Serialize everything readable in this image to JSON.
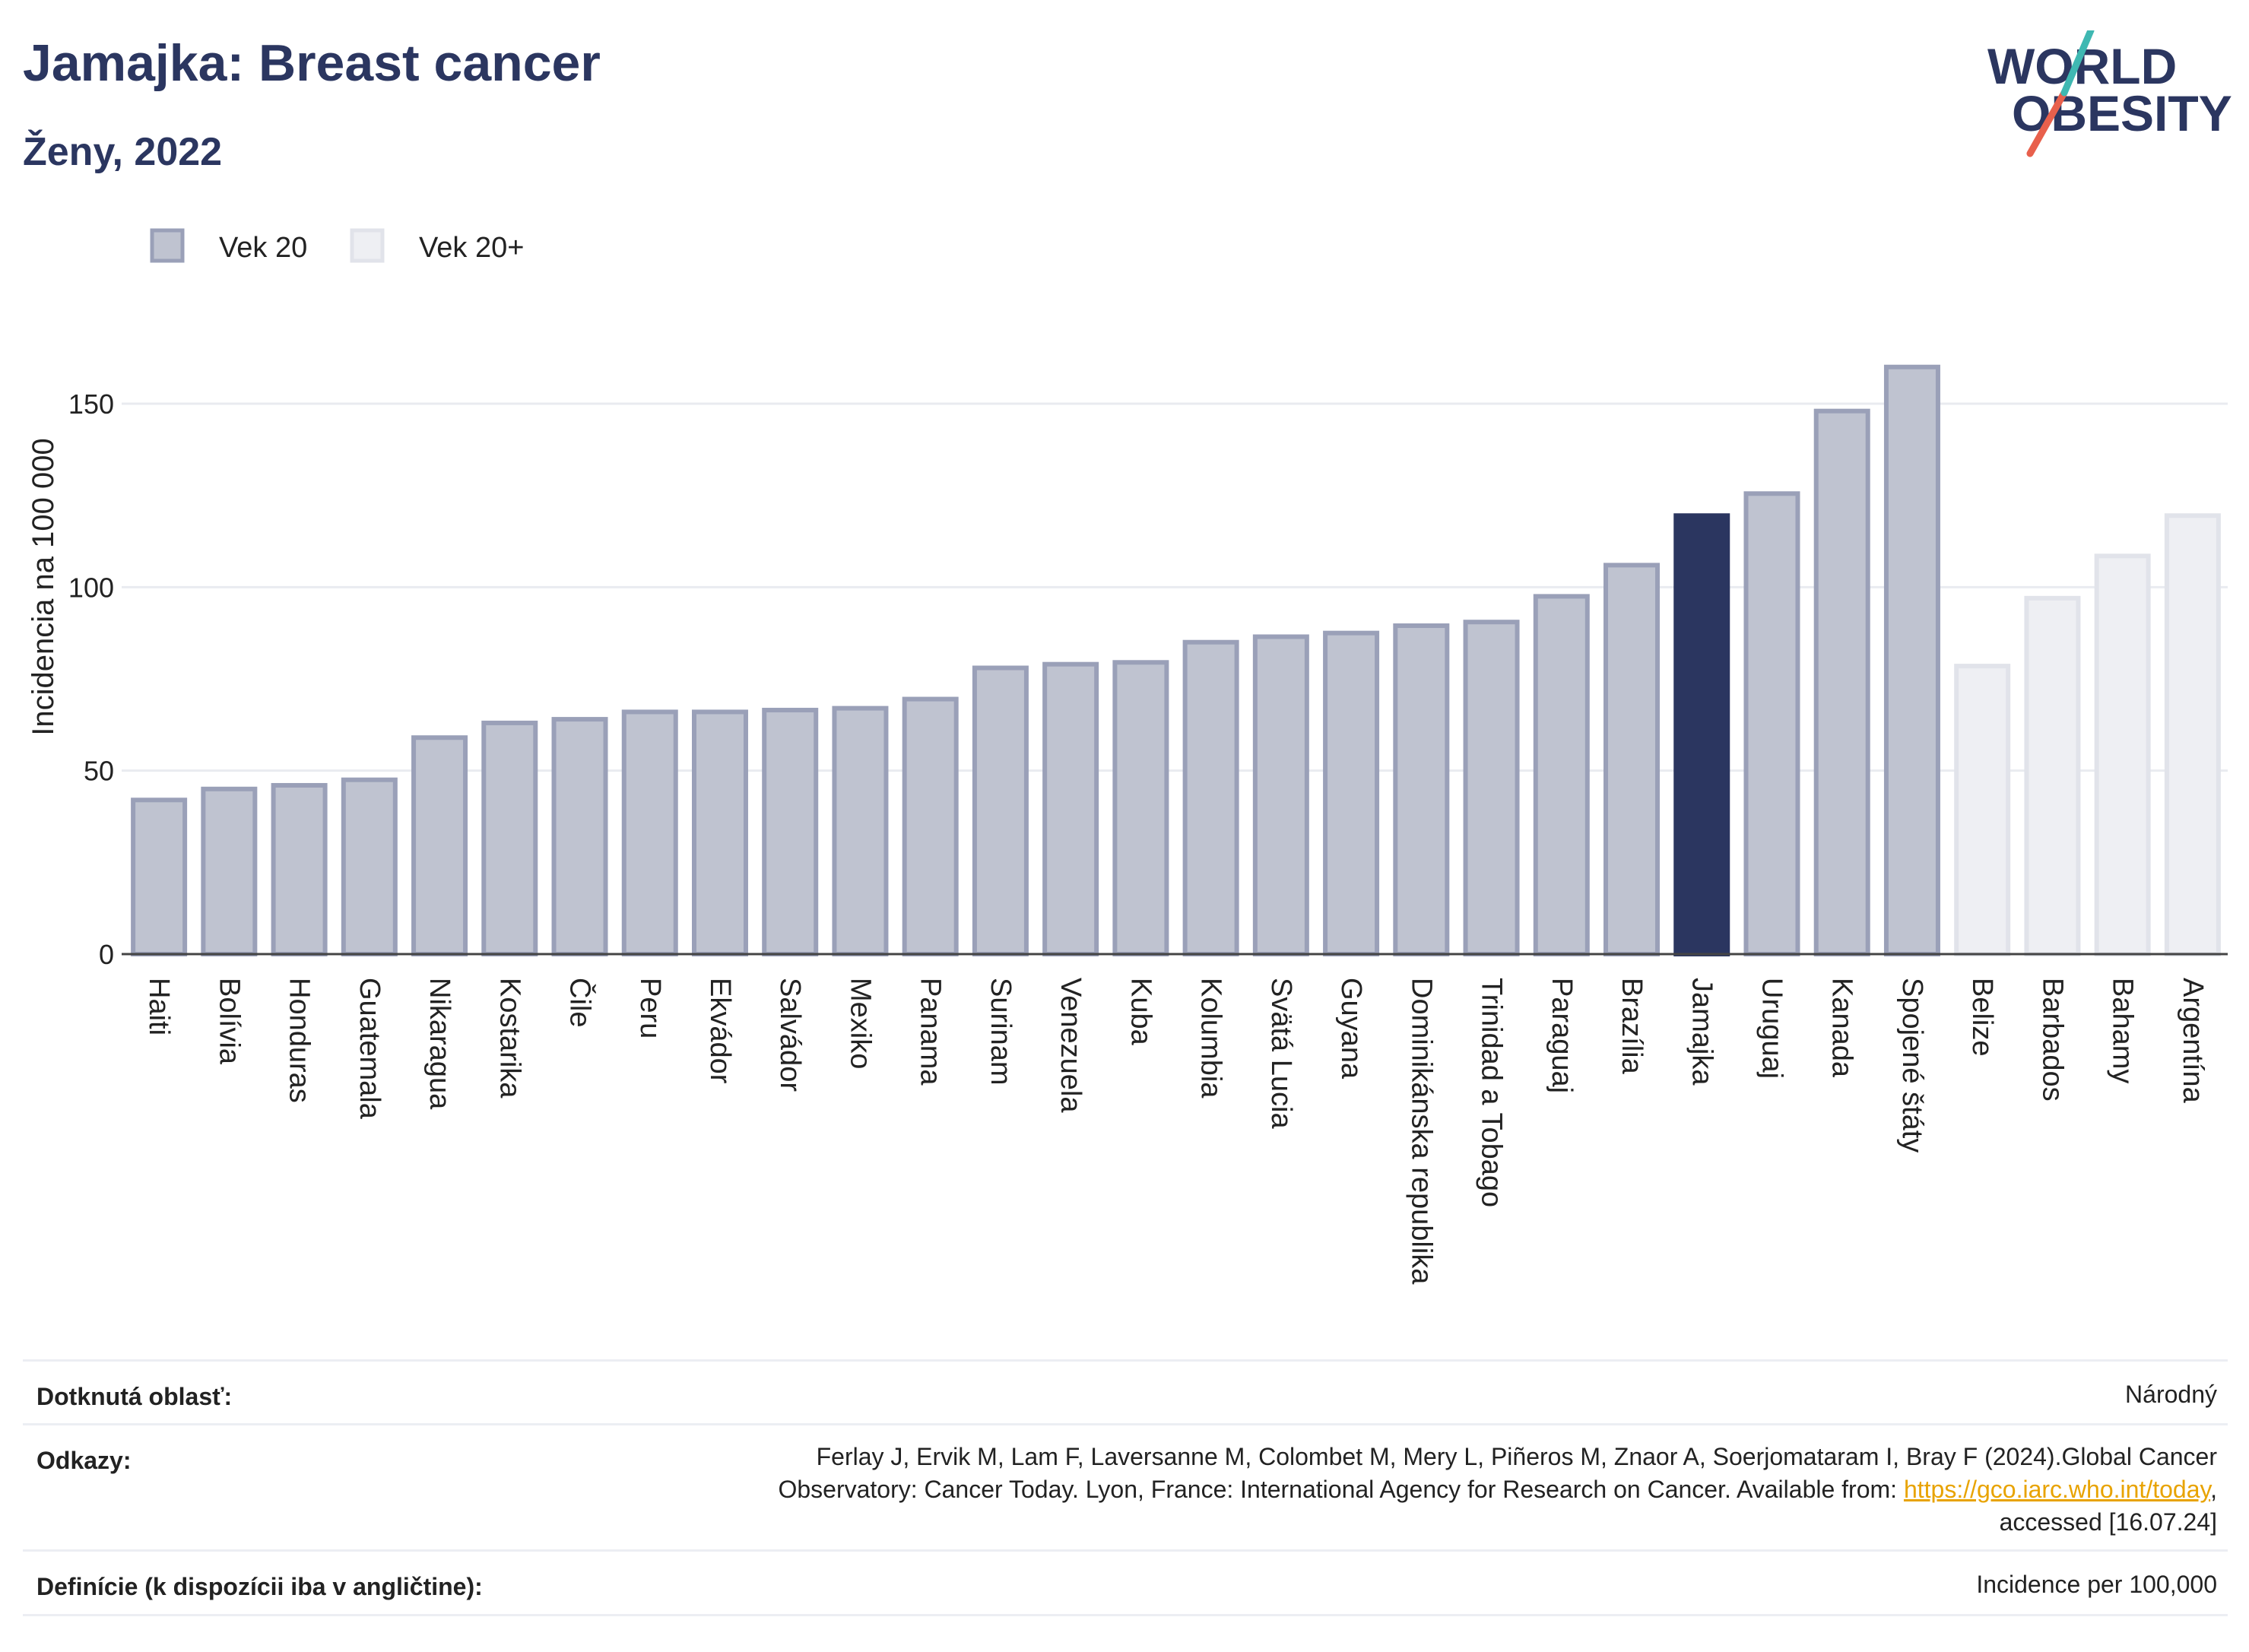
{
  "header": {
    "title": "Jamajka: Breast cancer",
    "subtitle": "Ženy, 2022"
  },
  "logo": {
    "line1": "WORLD",
    "line2": "OBESITY"
  },
  "chart_data": {
    "type": "bar",
    "ylabel": "Incidencia na 100 000",
    "xlabel": "",
    "ylim": [
      0,
      175
    ],
    "yticks": [
      0,
      50,
      100,
      150
    ],
    "grid": true,
    "legend_position": "top-left",
    "legend": [
      {
        "name": "Vek 20",
        "color": "#bfc3d0",
        "border": "#9aa0b8"
      },
      {
        "name": "Vek 20+",
        "color": "#eeeff3",
        "border": "#e1e3ea"
      }
    ],
    "highlight_color": "#2b3660",
    "categories": [
      "Haiti",
      "Bolívia",
      "Honduras",
      "Guatemala",
      "Nikaragua",
      "Kostarika",
      "Čile",
      "Peru",
      "Ekvádor",
      "Salvádor",
      "Mexiko",
      "Panama",
      "Surinam",
      "Venezuela",
      "Kuba",
      "Kolumbia",
      "Svätá Lucia",
      "Guyana",
      "Dominikánska republika",
      "Trinidad a Tobago",
      "Paraguaj",
      "Brazília",
      "Jamajka",
      "Uruguaj",
      "Kanada",
      "Spojené štáty",
      "Belize",
      "Barbados",
      "Bahamy",
      "Argentína"
    ],
    "values": [
      42,
      45,
      46,
      47.5,
      59,
      63,
      64,
      66,
      66,
      66.5,
      67,
      69.5,
      78,
      79,
      79.5,
      85,
      86.5,
      87.5,
      89.5,
      90.5,
      97.5,
      106,
      119.5,
      125.5,
      148,
      160,
      78.5,
      97,
      108.5,
      119.5
    ],
    "groups": [
      "Vek 20",
      "Vek 20",
      "Vek 20",
      "Vek 20",
      "Vek 20",
      "Vek 20",
      "Vek 20",
      "Vek 20",
      "Vek 20",
      "Vek 20",
      "Vek 20",
      "Vek 20",
      "Vek 20",
      "Vek 20",
      "Vek 20",
      "Vek 20",
      "Vek 20",
      "Vek 20",
      "Vek 20",
      "Vek 20",
      "Vek 20",
      "Vek 20",
      "Vek 20",
      "Vek 20",
      "Vek 20",
      "Vek 20",
      "Vek 20+",
      "Vek 20+",
      "Vek 20+",
      "Vek 20+"
    ],
    "highlight": "Jamajka"
  },
  "info": {
    "area_label": "Dotknutá oblasť:",
    "area_value": "Národný",
    "refs_label": "Odkazy:",
    "refs_line1": "Ferlay J, Ervik M, Lam F, Laversanne M, Colombet M, Mery L, Piñeros M, Znaor A, Soerjomataram I, Bray F (2024).Global Cancer",
    "refs_line2": "Observatory: Cancer Today. Lyon, France: International Agency for Research on Cancer. Available from: ",
    "refs_link": "https://gco.iarc.who.int/today",
    "refs_line2_end": ",",
    "refs_line3": "accessed [16.07.24]",
    "def_label": "Definície (k dispozícii iba v angličtine):",
    "def_value": "Incidence per 100,000"
  }
}
